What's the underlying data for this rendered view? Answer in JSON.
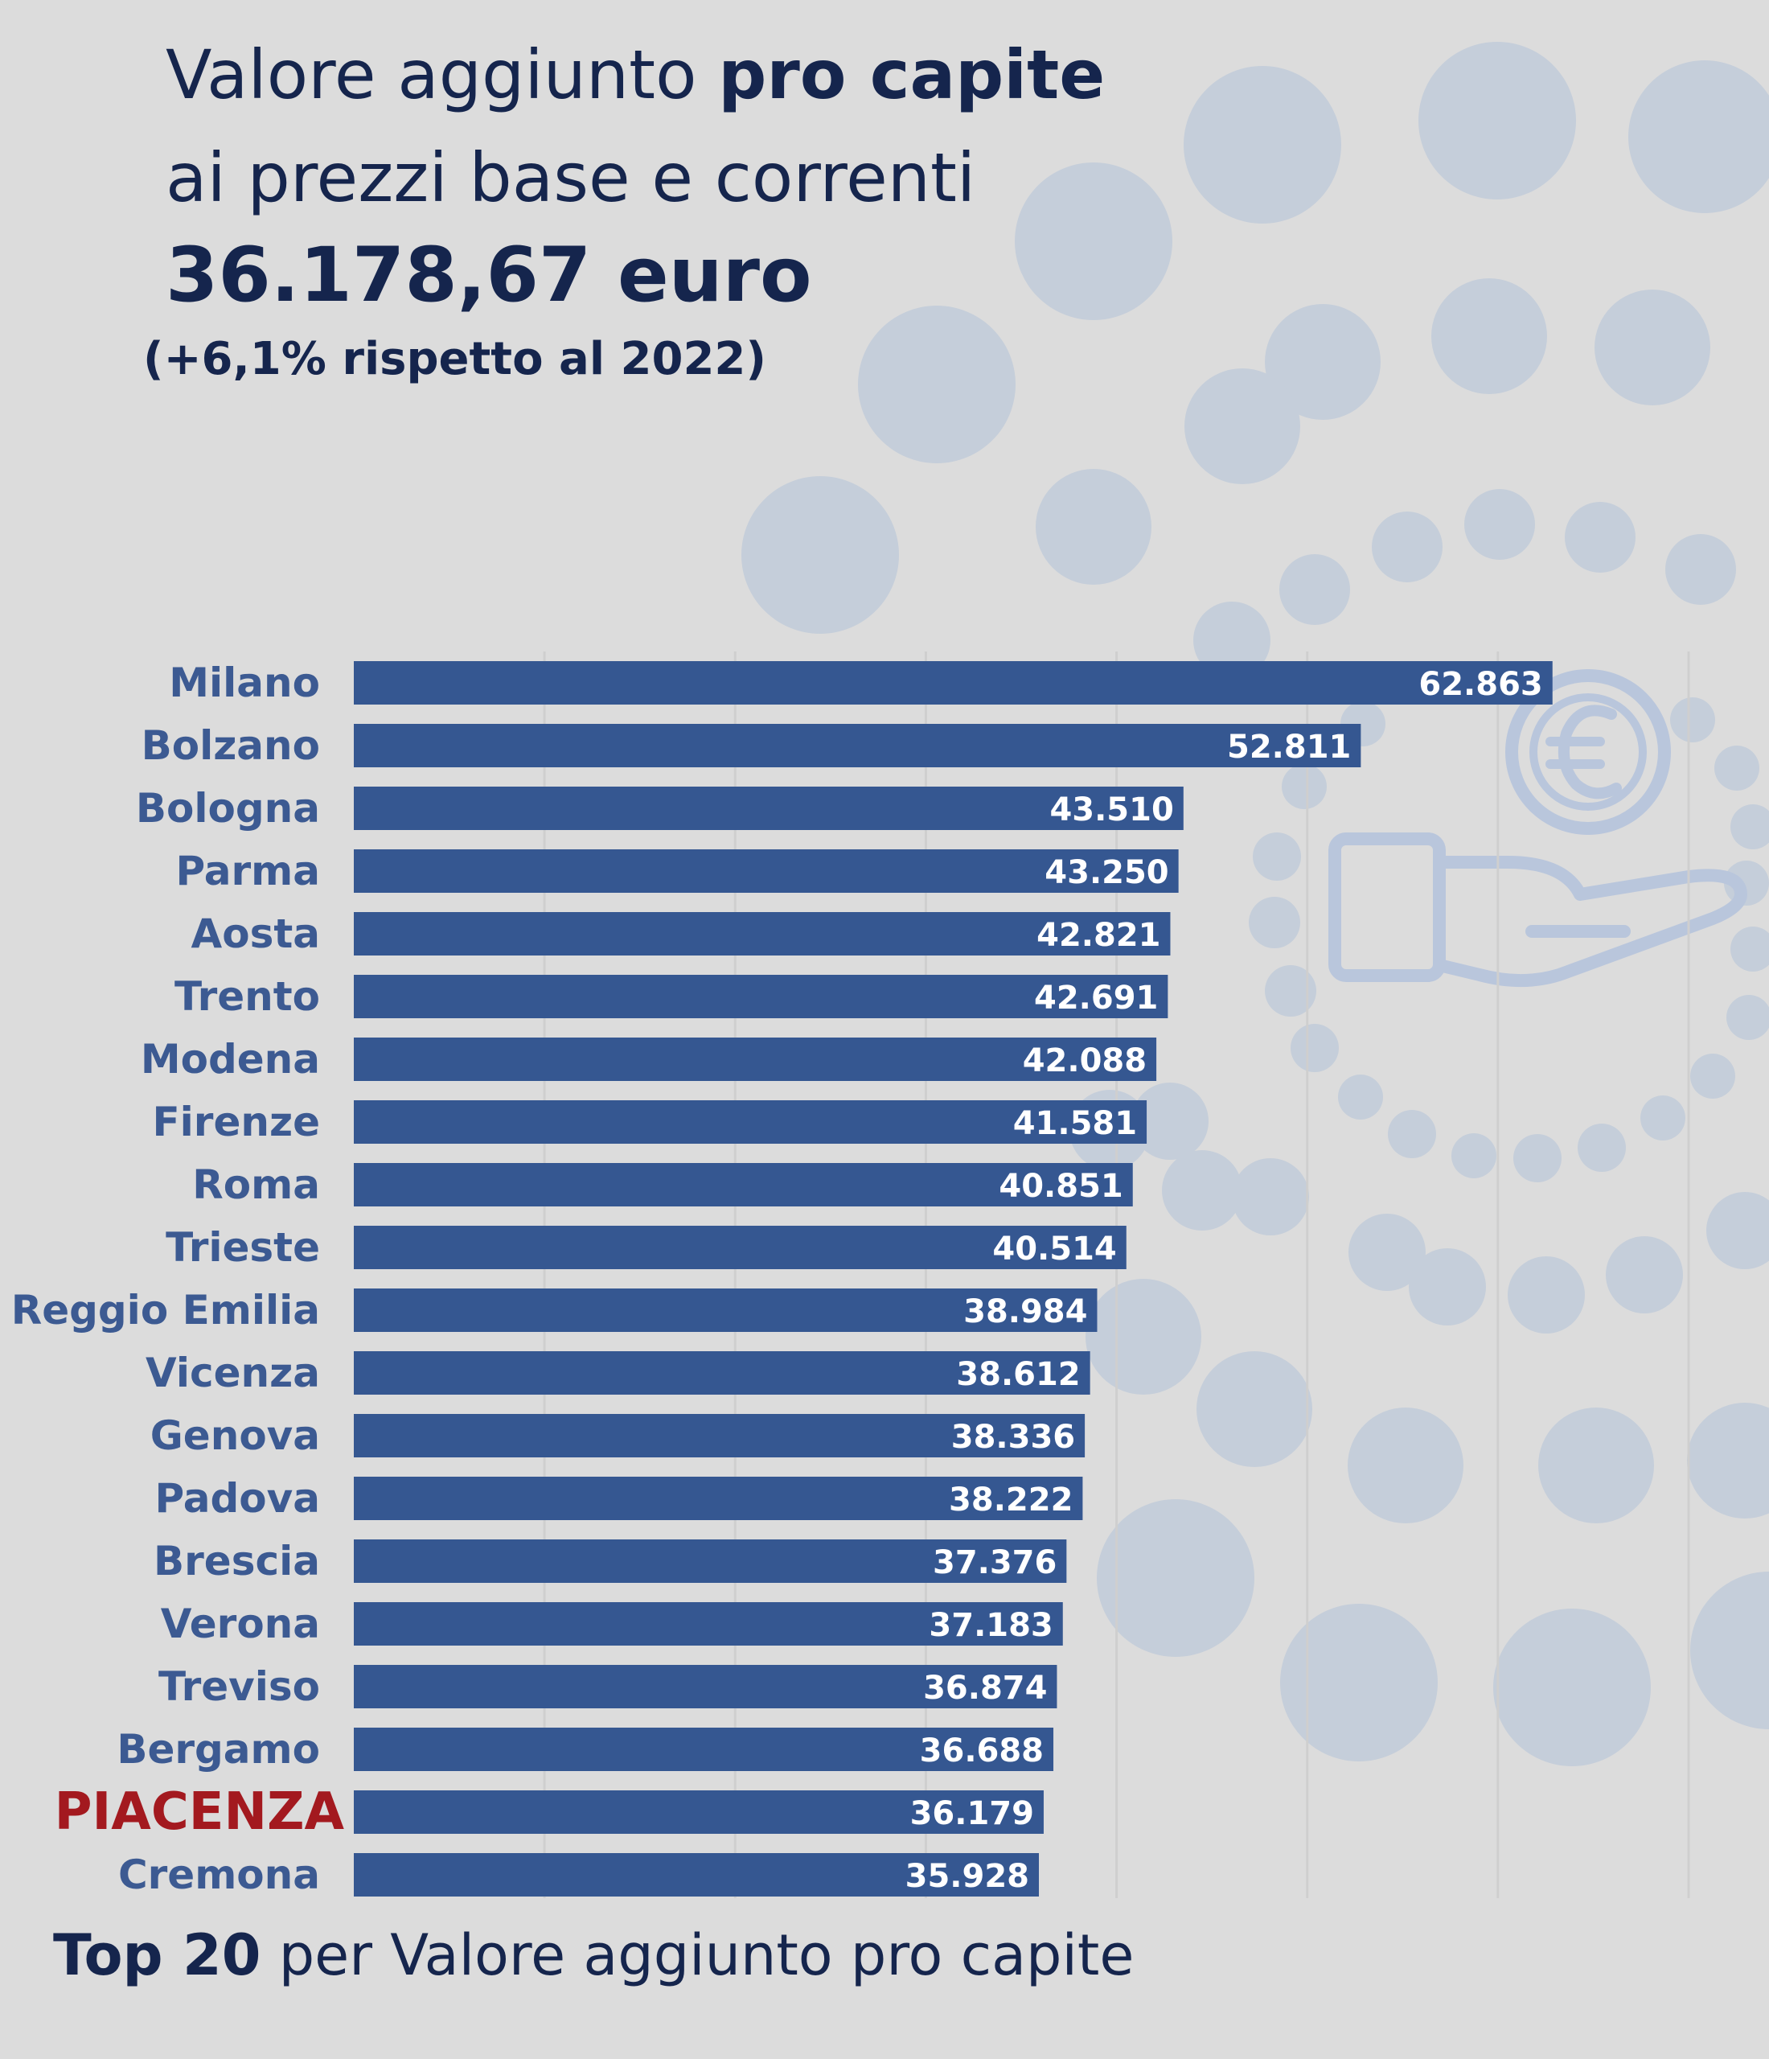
{
  "header": {
    "title_line1_prefix": "Valore aggiunto",
    "title_line1_bold": "pro capite",
    "title_line2": "ai prezzi base  e correnti",
    "headline_value": "36.178,67 euro",
    "change_note": "(+6,1% rispetto al 2022)"
  },
  "footer": {
    "bold": "Top 20",
    "rest": "per Valore aggiunto pro capite"
  },
  "colors": {
    "background": "#dcdcdc",
    "bar": "#355791",
    "label": "#3c5a92",
    "highlight": "#a3191f",
    "heading": "#15254d",
    "decor": "#c5ceda"
  },
  "decoration": {
    "icon": "euro-coin-hand-icon"
  },
  "chart_data": {
    "type": "bar",
    "orientation": "horizontal",
    "categories": [
      "Milano",
      "Bolzano",
      "Bologna",
      "Parma",
      "Aosta",
      "Trento",
      "Modena",
      "Firenze",
      "Roma",
      "Trieste",
      "Reggio Emilia",
      "Vicenza",
      "Genova",
      "Padova",
      "Brescia",
      "Verona",
      "Treviso",
      "Bergamo",
      "PIACENZA",
      "Cremona"
    ],
    "values": [
      62863,
      52811,
      43510,
      43250,
      42821,
      42691,
      42088,
      41581,
      40851,
      40514,
      38984,
      38612,
      38336,
      38222,
      37376,
      37183,
      36874,
      36688,
      36179,
      35928
    ],
    "value_labels": [
      "62.863",
      "52.811",
      "43.510",
      "43.250",
      "42.821",
      "42.691",
      "42.088",
      "41.581",
      "40.851",
      "40.514",
      "38.984",
      "38.612",
      "38.336",
      "38.222",
      "37.376",
      "37.183",
      "36.874",
      "36.688",
      "36.179",
      "35.928"
    ],
    "highlight_category": "PIACENZA",
    "xlim": [
      0,
      70000
    ],
    "grid": true,
    "legend": "none"
  }
}
